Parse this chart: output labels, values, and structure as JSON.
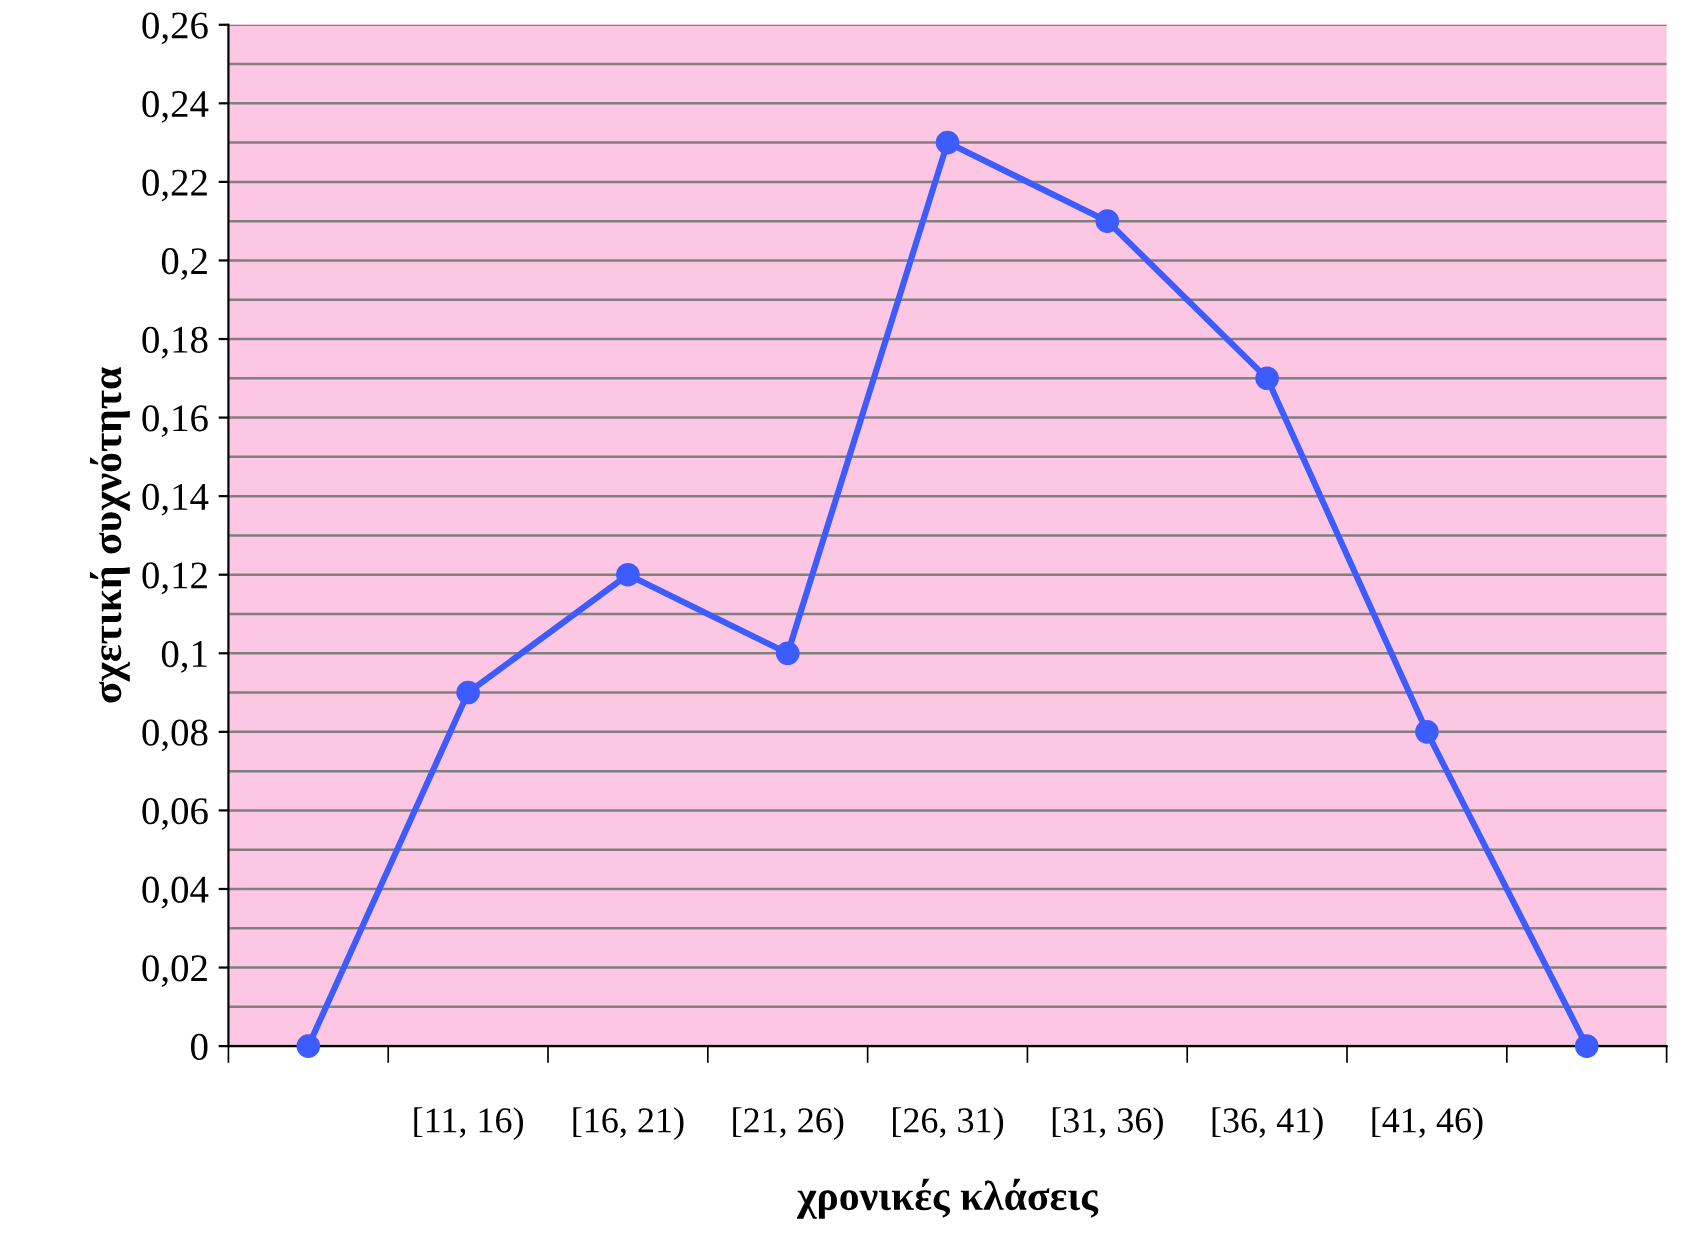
{
  "chart_data": {
    "type": "line",
    "xlabel": "χρονικές κλάσεις",
    "ylabel": "σχετική συχνότητα",
    "categories": [
      null,
      "[11, 16)",
      "[16, 21)",
      "[21, 26)",
      "[26, 31)",
      "[31, 36)",
      "[36, 41)",
      "[41, 46)",
      null
    ],
    "series": [
      {
        "color": "#3d5cff",
        "values": [
          0,
          0.09,
          0.12,
          0.1,
          0.23,
          0.21,
          0.17,
          0.08,
          0
        ]
      }
    ],
    "ylim": [
      0,
      0.26
    ],
    "yticks": [
      0,
      {
        "value": 0.01,
        "label": null
      },
      {
        "value": 0.02,
        "label": "0,02"
      },
      {
        "value": 0.03,
        "label": null
      },
      {
        "value": 0.04,
        "label": "0,04"
      },
      {
        "value": 0.05,
        "label": null
      },
      {
        "value": 0.06,
        "label": "0,06"
      },
      {
        "value": 0.07,
        "label": null
      },
      {
        "value": 0.08,
        "label": "0,08"
      },
      {
        "value": 0.09,
        "label": null
      },
      {
        "value": 0.1,
        "label": "0,1"
      },
      {
        "value": 0.11,
        "label": null
      },
      {
        "value": 0.12,
        "label": "0,12"
      },
      {
        "value": 0.13,
        "label": null
      },
      {
        "value": 0.14,
        "label": "0,14"
      },
      {
        "value": 0.15,
        "label": null
      },
      {
        "value": 0.16,
        "label": "0,16"
      },
      {
        "value": 0.17,
        "label": null
      },
      {
        "value": 0.18,
        "label": "0,18"
      },
      {
        "value": 0.19,
        "label": null
      },
      {
        "value": 0.2,
        "label": "0,2"
      },
      {
        "value": 0.21,
        "label": null
      },
      {
        "value": 0.22,
        "label": "0,22"
      },
      {
        "value": 0.23,
        "label": null
      },
      {
        "value": 0.24,
        "label": "0,24"
      },
      {
        "value": 0.25,
        "label": null
      },
      {
        "value": 0.26,
        "label": "0,26"
      }
    ],
    "grid": "y",
    "marker": "circle",
    "line_style": "solid",
    "legend": false
  }
}
